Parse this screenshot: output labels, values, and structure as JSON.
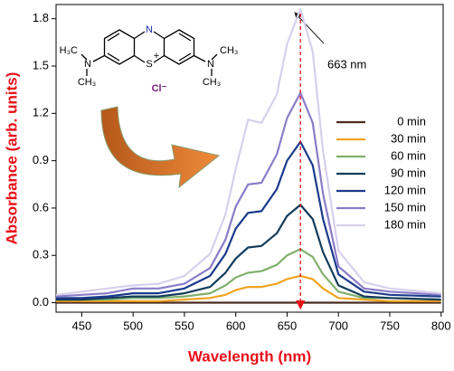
{
  "chart_data": {
    "type": "line",
    "x_label": "Wavelength (nm)",
    "y_label": "Absorbance (arb. units)",
    "x": [
      425,
      450,
      475,
      500,
      525,
      550,
      575,
      590,
      600,
      612,
      625,
      640,
      650,
      663,
      675,
      685,
      700,
      725,
      750,
      800
    ],
    "series": [
      {
        "name": "0 min",
        "color": "#4b2c20",
        "values": [
          0,
          0,
          0,
          0,
          0,
          0,
          0,
          0,
          0,
          0,
          0,
          0,
          0,
          0,
          0,
          0,
          0,
          0,
          0,
          0
        ]
      },
      {
        "name": "30 min",
        "color": "#f0a420",
        "values": [
          0.01,
          0.01,
          0.01,
          0.01,
          0.01,
          0.02,
          0.03,
          0.05,
          0.08,
          0.1,
          0.1,
          0.12,
          0.15,
          0.17,
          0.15,
          0.09,
          0.03,
          0.02,
          0.01,
          0.01
        ]
      },
      {
        "name": "60 min",
        "color": "#80b06c",
        "values": [
          0.02,
          0.02,
          0.02,
          0.03,
          0.03,
          0.04,
          0.06,
          0.11,
          0.16,
          0.19,
          0.2,
          0.24,
          0.3,
          0.34,
          0.29,
          0.18,
          0.07,
          0.03,
          0.03,
          0.02
        ]
      },
      {
        "name": "90 min",
        "color": "#123c5c",
        "values": [
          0.02,
          0.02,
          0.03,
          0.04,
          0.04,
          0.06,
          0.1,
          0.19,
          0.28,
          0.35,
          0.36,
          0.44,
          0.55,
          0.62,
          0.53,
          0.32,
          0.11,
          0.04,
          0.03,
          0.02
        ]
      },
      {
        "name": "120 min",
        "color": "#1a3a8c",
        "values": [
          0.03,
          0.03,
          0.04,
          0.06,
          0.06,
          0.09,
          0.17,
          0.31,
          0.47,
          0.57,
          0.58,
          0.72,
          0.9,
          1.02,
          0.87,
          0.53,
          0.18,
          0.07,
          0.05,
          0.04
        ]
      },
      {
        "name": "150 min",
        "color": "#8a7cc8",
        "values": [
          0.04,
          0.05,
          0.06,
          0.09,
          0.09,
          0.12,
          0.22,
          0.4,
          0.61,
          0.75,
          0.76,
          0.94,
          1.17,
          1.33,
          1.14,
          0.69,
          0.23,
          0.09,
          0.07,
          0.05
        ]
      },
      {
        "name": "180 min",
        "color": "#d8d0ec",
        "values": [
          0.05,
          0.07,
          0.09,
          0.11,
          0.12,
          0.17,
          0.31,
          0.56,
          0.85,
          1.16,
          1.14,
          1.32,
          1.64,
          1.86,
          1.59,
          0.96,
          0.33,
          0.13,
          0.09,
          0.06
        ]
      }
    ],
    "xlim": [
      425,
      802
    ],
    "ylim": [
      -0.06,
      1.89
    ],
    "xticks": [
      450,
      500,
      550,
      600,
      650,
      700,
      750,
      800
    ],
    "yticks": [
      {
        "value": 0,
        "label": "0.0"
      },
      0.3,
      0.6,
      0.9,
      1.2,
      1.5,
      1.8
    ],
    "peak_wavelength": 663,
    "peak_label": "663 nm",
    "peak_line_color": "#e8101a",
    "structure_labels": [
      "N",
      "S",
      "+",
      "N",
      "N",
      "H₃C",
      "CH₃",
      "CH₃",
      "CH₃",
      "Cl⁻"
    ]
  }
}
